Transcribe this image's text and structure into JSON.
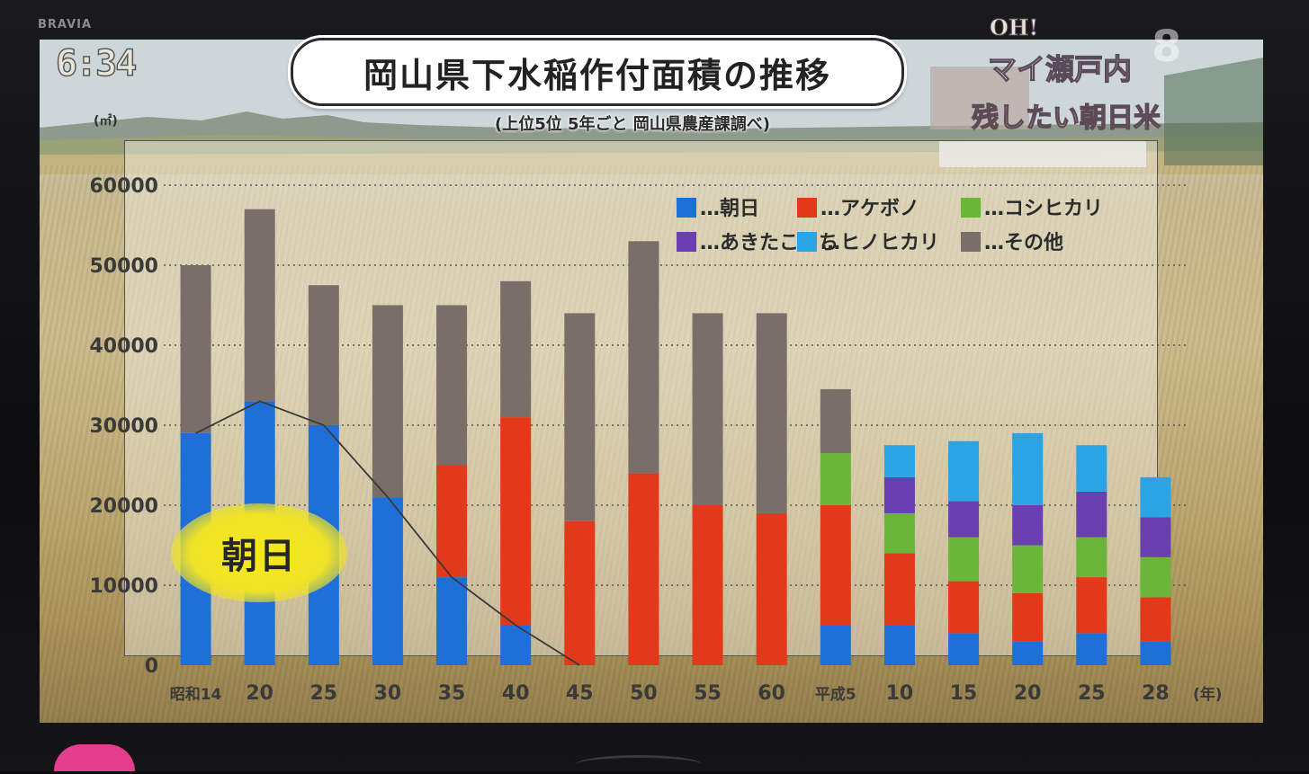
{
  "tv": {
    "brand": "BRAVIA"
  },
  "overlay": {
    "clock": "6:34",
    "program_logo_top": "OH!",
    "program_logo_main": "マイ瀬戸内",
    "channel": "8",
    "corner_caption": "残したい朝日米"
  },
  "chart_data": {
    "type": "bar",
    "stacked": true,
    "title": "岡山県下水稲作付面積の推移",
    "subtitle": "(上位5位 5年ごと 岡山県農産課調べ)",
    "ylabel": "(㎡)",
    "xunit": "(年)",
    "ylim": [
      0,
      60000
    ],
    "yticks": [
      0,
      10000,
      20000,
      30000,
      40000,
      50000,
      60000
    ],
    "ytick_labels": [
      "0",
      "10000",
      "20000",
      "30000",
      "40000",
      "50000",
      "60000"
    ],
    "grid": true,
    "legend_position": "top-right",
    "categories": [
      "昭和14",
      "20",
      "25",
      "30",
      "35",
      "40",
      "45",
      "50",
      "55",
      "60",
      "平成5",
      "10",
      "15",
      "20",
      "25",
      "28"
    ],
    "series": [
      {
        "name": "朝日",
        "color": "#1f6fd8",
        "values": [
          29000,
          33000,
          30000,
          21000,
          11000,
          5000,
          0,
          0,
          0,
          0,
          5000,
          5000,
          4000,
          3000,
          4000,
          3000
        ]
      },
      {
        "name": "アケボノ",
        "color": "#e2391a",
        "values": [
          0,
          0,
          0,
          0,
          14000,
          26000,
          18000,
          24000,
          20000,
          19000,
          15000,
          9000,
          6500,
          6000,
          7000,
          5500
        ]
      },
      {
        "name": "コシヒカリ",
        "color": "#6bb53a",
        "values": [
          0,
          0,
          0,
          0,
          0,
          0,
          0,
          0,
          0,
          0,
          6500,
          5000,
          5500,
          6000,
          5000,
          5000
        ]
      },
      {
        "name": "あきたこまち",
        "color": "#6a3fb0",
        "values": [
          0,
          0,
          0,
          0,
          0,
          0,
          0,
          0,
          0,
          0,
          0,
          4500,
          4500,
          5000,
          5700,
          5000
        ]
      },
      {
        "name": "ヒノヒカリ",
        "color": "#2aa4e4",
        "values": [
          0,
          0,
          0,
          0,
          0,
          0,
          0,
          0,
          0,
          0,
          0,
          4000,
          7500,
          9000,
          5800,
          5000
        ]
      },
      {
        "name": "その他",
        "color": "#7a6e6b",
        "values": [
          21000,
          24000,
          17500,
          24000,
          20000,
          17000,
          26000,
          29000,
          24000,
          25000,
          8000,
          0,
          0,
          0,
          0,
          0
        ]
      }
    ],
    "trend_line": {
      "series": "朝日"
    },
    "legend_entries": [
      "…朝日",
      "…アケボノ",
      "…コシヒカリ",
      "…あきたこまち",
      "…ヒノヒカリ",
      "…その他"
    ],
    "annotation": "朝日"
  }
}
